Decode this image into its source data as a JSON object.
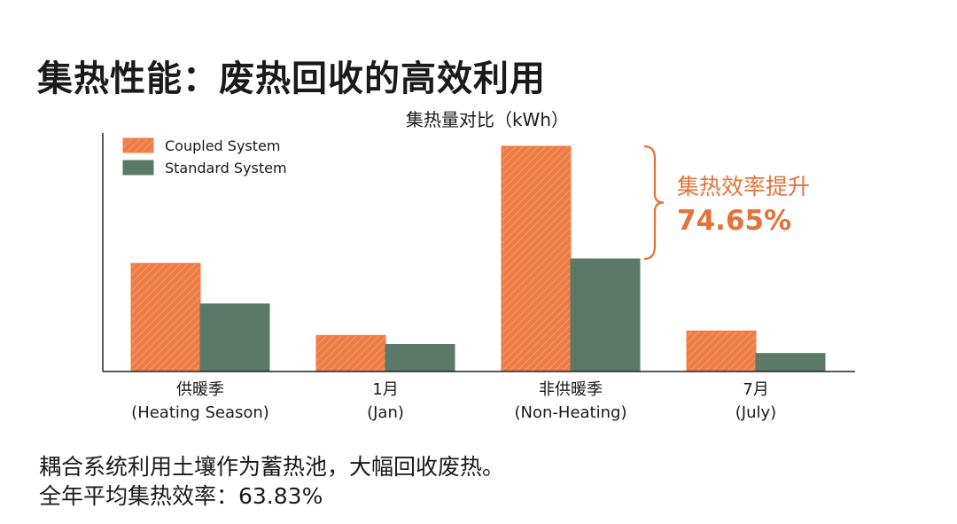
{
  "page": {
    "title": "集热性能：废热回收的高效利用"
  },
  "colors": {
    "coupled": "#ee7c45",
    "coupled_hatch": "#f4a57c",
    "standard": "#5b7968",
    "axis": "#222222",
    "annotation": "#e2733a"
  },
  "chart_data": {
    "type": "bar",
    "title": "集热量对比（kWh）",
    "categories": [
      "供暖季\n(Heating Season)",
      "1月\n(Jan)",
      "非供暖季\n(Non-Heating)",
      "7月\n(July)"
    ],
    "category_lines": [
      [
        "供暖季",
        "(Heating Season)"
      ],
      [
        "1月",
        "(Jan)"
      ],
      [
        "非供暖季",
        "(Non-Heating)"
      ],
      [
        "7月",
        "(July)"
      ]
    ],
    "series": [
      {
        "name": "Coupled System",
        "values": [
          48,
          16,
          100,
          18
        ],
        "pattern": "hatched"
      },
      {
        "name": "Standard System",
        "values": [
          30,
          12,
          50,
          8
        ],
        "pattern": "solid"
      }
    ],
    "ylim": [
      0,
      100
    ],
    "xlabel": "",
    "ylabel": "",
    "legend_position": "top-left",
    "grid": false,
    "annotation": {
      "category_index": 2,
      "label": "集热效率提升",
      "value": "74.65%"
    }
  },
  "footer": {
    "line1": "耦合系统利用土壤作为蓄热池，大幅回收废热。",
    "line2": "全年平均集热效率：63.83%"
  }
}
